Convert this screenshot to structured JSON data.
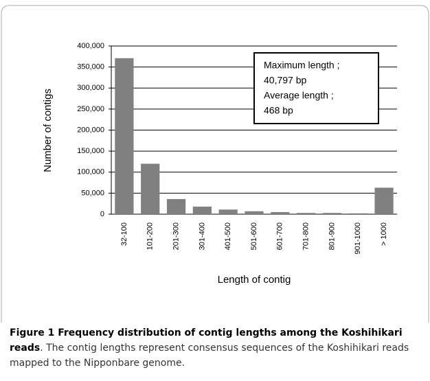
{
  "chart_data": {
    "type": "bar",
    "categories": [
      "32-100",
      "101-200",
      "201-300",
      "301-400",
      "401-500",
      "501-600",
      "601-700",
      "701-800",
      "801-900",
      "901-1000",
      "> 1000"
    ],
    "values": [
      371000,
      120000,
      36000,
      18000,
      11000,
      7000,
      5000,
      3000,
      3000,
      2000,
      63000
    ],
    "color": "#808080",
    "x_label": "Length of contig",
    "y_label": "Number of contigs",
    "ylim": [
      0,
      400000
    ],
    "yticks": [
      0,
      {
        "value": 50000,
        "label": "50,000"
      },
      {
        "value": 100000,
        "label": "100,000"
      },
      {
        "value": 150000,
        "label": "150,000"
      },
      {
        "value": 200000,
        "label": "200,000"
      },
      {
        "value": 250000,
        "label": "250,000"
      },
      {
        "value": 300000,
        "label": "300,000"
      },
      {
        "value": 350000,
        "label": "350,000"
      },
      {
        "value": 400000,
        "label": "400,000"
      }
    ],
    "grid": true,
    "annotation": [
      "Maximum length ;",
      "40,797 bp",
      "Average length ;",
      "468 bp"
    ]
  },
  "caption": {
    "title": "Figure 1 Frequency distribution of contig lengths among the Koshihikari reads",
    "text": ". The contig lengths represent consensus sequences of the Koshihikari reads mapped to the Nipponbare genome."
  }
}
